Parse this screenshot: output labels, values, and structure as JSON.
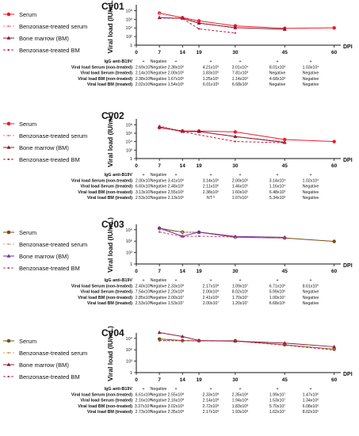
{
  "x_axis_unit": "DPI",
  "y_axis_label": "Viral load (IU/mL)",
  "legend_labels": [
    "Serum",
    "Benzonase-treated serum",
    "Bone marrow (BM)",
    "Benzonase-treated BM"
  ],
  "table_row_labels": [
    "IgG anti-B19V",
    "Viral load Serum (non-treated)",
    "Viral load Serum (treated)",
    "Viral load BM (non-treated)",
    "Viral load BM (treated)"
  ],
  "chart_data": [
    {
      "type": "line",
      "title": "Cy01",
      "y_scale": "log",
      "ylim": [
        1,
        1000000000
      ],
      "y_tick_labels": [
        "1",
        "10²",
        "10⁴",
        "10⁶",
        "10⁸"
      ],
      "x": [
        0,
        7,
        14,
        19,
        30,
        45,
        60
      ],
      "x_tick_labels": [
        "0",
        "7",
        "14",
        "19",
        "30",
        "45",
        "60"
      ],
      "series": [
        {
          "name": "Serum",
          "color": "#ee1a2a",
          "values": [
            null,
            26900000,
            2380000,
            421000,
            30100,
            8010,
            10300
          ]
        },
        {
          "name": "Benzonase-treated serum",
          "color": "#f07a8a",
          "values": [
            null,
            21400000,
            2000000,
            183000,
            7810,
            null,
            null
          ]
        },
        {
          "name": "Bone marrow (BM)",
          "color": "#8a1830",
          "values": [
            null,
            2380000,
            1670000,
            125000,
            11400,
            4680,
            null
          ]
        },
        {
          "name": "Benzonase-treated BM",
          "color": "#c01c40",
          "values": [
            null,
            2020000,
            1540000,
            6010,
            668,
            null,
            null
          ]
        }
      ],
      "table": {
        "columns": [
          "0",
          "7",
          "14",
          "19",
          "30",
          "45",
          "60"
        ],
        "rows": [
          [
            "Negative",
            "+",
            "+",
            "+",
            "+",
            "+",
            "+"
          ],
          [
            "Negative",
            "2.69x10⁷",
            "2.38x10⁶",
            "4.21x10⁵",
            "3.01x10⁴",
            "8.01x10³",
            "1.03x10⁴"
          ],
          [
            "Negative",
            "2.14x10⁷",
            "2.00x10⁶",
            "1.83x10⁵",
            "7.81x10³",
            "Negative",
            "Negative"
          ],
          [
            "Negative",
            "2.38x10⁶",
            "1.67x10⁶",
            "1.25x10⁵",
            "1.14x10⁴",
            "4.68x10³",
            "Negative"
          ],
          [
            "Negative",
            "2.02x10⁶",
            "1.54x10⁶",
            "6.01x10³",
            "6.68x10²",
            "Negative",
            "Negative"
          ]
        ]
      }
    },
    {
      "type": "line",
      "title": "Cy02",
      "y_scale": "log",
      "ylim": [
        1,
        1000000000
      ],
      "y_tick_labels": [
        "1",
        "10²",
        "10⁴",
        "10⁶",
        "10⁸"
      ],
      "x": [
        0,
        7,
        14,
        19,
        30,
        45,
        60
      ],
      "x_tick_labels": [
        "0",
        "7",
        "14",
        "19",
        "30",
        "45",
        "60"
      ],
      "series": [
        {
          "name": "Serum",
          "color": "#ee1a2a",
          "values": [
            null,
            20000000,
            3410000,
            3140000,
            2000000,
            31400,
            10200
          ]
        },
        {
          "name": "Benzonase-treated serum",
          "color": "#f07a8a",
          "values": [
            null,
            66000000,
            2480000,
            2110000,
            146000,
            11600,
            null
          ]
        },
        {
          "name": "Bone marrow (BM)",
          "color": "#8a1830",
          "values": [
            null,
            31300000,
            2550000,
            2380000,
            160000,
            6480,
            null
          ]
        },
        {
          "name": "Benzonase-treated BM",
          "color": "#c01c40",
          "values": [
            null,
            25300000,
            2130000,
            null,
            10700,
            5340,
            null
          ]
        }
      ],
      "table": {
        "columns": [
          "0",
          "7",
          "14",
          "19",
          "30",
          "45",
          "60"
        ],
        "rows": [
          [
            "Negative",
            "+",
            "+",
            "+",
            "+",
            "+",
            "+"
          ],
          [
            "Negative",
            "2.00x10⁷",
            "3.41x10⁶",
            "3.14x10⁶",
            "2.00x10⁶",
            "3.14x10⁴",
            "1.02x10⁴"
          ],
          [
            "Negative",
            "6.60x10⁷",
            "2.48x10⁶",
            "2.11x10⁶",
            "1.46x10⁵",
            "1.16x10⁴",
            "Negative"
          ],
          [
            "Negative",
            "3.13x10⁷",
            "2.55x10⁶",
            "2.38x10⁶",
            "1.60x10⁵",
            "6.48x10³",
            "Negative"
          ],
          [
            "Negative",
            "2.53x10⁷",
            "2.13x10⁶",
            "NT ᵇ",
            "1.07x10⁴",
            "5.34x10³",
            "Negative"
          ]
        ]
      }
    },
    {
      "type": "line",
      "title": "Cy03",
      "y_scale": "log",
      "ylim": [
        1,
        10000000000
      ],
      "y_tick_labels": [
        "1",
        "10³",
        "10⁶",
        "10⁹"
      ],
      "x": [
        0,
        7,
        14,
        19,
        30,
        45,
        60
      ],
      "x_tick_labels": [
        "0",
        "7",
        "14",
        "19",
        "30",
        "45",
        "60"
      ],
      "series": [
        {
          "name": "Serum",
          "color": "#7a4a10",
          "values": [
            null,
            2400000000,
            233000000,
            217000000,
            10900000,
            6710000,
            861000
          ]
        },
        {
          "name": "Benzonase-treated serum",
          "color": "#d8a0b0",
          "values": [
            null,
            754000000,
            220000000,
            200000000,
            8020000,
            5990000,
            null
          ]
        },
        {
          "name": "Bone marrow (BM)",
          "color": "#7030a0",
          "values": [
            null,
            2850000000,
            20000000,
            241000000,
            17000000,
            10000000,
            null
          ]
        },
        {
          "name": "Benzonase-treated BM",
          "color": "#c0407a",
          "values": [
            null,
            253000000,
            15300000,
            20000000,
            12000000,
            6680000,
            null
          ]
        }
      ],
      "table": {
        "columns": [
          "0",
          "7",
          "14",
          "19",
          "30",
          "45",
          "60"
        ],
        "rows": [
          [
            "Negative",
            "+",
            "+",
            "+",
            "+",
            "+",
            "+"
          ],
          [
            "Negative",
            "2.40x10⁹",
            "2.33x10⁸",
            "2.17x10⁸",
            "1.09x10⁷",
            "6.71x10⁶",
            "8.61x10⁵"
          ],
          [
            "Negative",
            "7.54x10⁸",
            "2.20x10⁸",
            "2.00x10⁸",
            "8.02x10⁶",
            "5.99x10⁶",
            "Negative"
          ],
          [
            "Negative",
            "2.85x10⁹",
            "2.00x10⁷",
            "2.41x10⁸",
            "1.70x10⁷",
            "1.00x10⁷",
            "Negative"
          ],
          [
            "Negative",
            "2.53x10⁸",
            "1.53x10⁷",
            "2.00x10⁷",
            "1.20x10⁷",
            "6.68x10⁶",
            "Negative"
          ]
        ]
      }
    },
    {
      "type": "line",
      "title": "Cy04",
      "y_scale": "log",
      "ylim": [
        1,
        10000000000
      ],
      "y_tick_labels": [
        "1",
        "10³",
        "10⁶",
        "10⁹"
      ],
      "x": [
        0,
        7,
        14,
        19,
        30,
        45,
        60
      ],
      "x_tick_labels": [
        "0",
        "7",
        "14",
        "19",
        "30",
        "45",
        "60"
      ],
      "series": [
        {
          "name": "Serum",
          "color": "#6a5a10",
          "values": [
            null,
            661000000,
            255000000,
            233000000,
            235000000,
            19900000,
            1470000
          ]
        },
        {
          "name": "Benzonase-treated serum",
          "color": "#d0a060",
          "values": [
            null,
            216000000,
            216000000,
            214000000,
            194000000,
            15300000,
            1340000
          ]
        },
        {
          "name": "Bone marrow (BM)",
          "color": "#8a1f40",
          "values": [
            null,
            33700000000,
            3020000000,
            272000000,
            183000000,
            57000000,
            6080000
          ]
        },
        {
          "name": "Benzonase-treated BM",
          "color": "#c02a60",
          "values": [
            null,
            273000000,
            235000000,
            217000000,
            193000000,
            16200000,
            802000
          ]
        }
      ],
      "table": {
        "columns": [
          "0",
          "7",
          "14",
          "19",
          "30",
          "45",
          "60"
        ],
        "rows": [
          [
            "Negative",
            "+",
            "+",
            "+",
            "+",
            "+",
            "+"
          ],
          [
            "Negative",
            "6.61x10⁸",
            "2.55x10⁸",
            "2.33x10⁸",
            "2.35x10⁸",
            "1.99x10⁷",
            "1.47x10⁶"
          ],
          [
            "Negative",
            "2.16x10⁸",
            "2.16x10⁸",
            "2.14x10⁸",
            "1.94x10⁸",
            "1.53x10⁷",
            "1.34x10⁶"
          ],
          [
            "Negative",
            "3.37x10¹⁰",
            "3.02x10⁹",
            "2.72x10⁸",
            "1.83x10⁸",
            "5.70x10⁷",
            "6.08x10⁶"
          ],
          [
            "Negative",
            "2.73x10⁸",
            "2.35x10⁸",
            "2.17x10⁸",
            "1.93x10⁸",
            "1.62x10⁷",
            "8.02x10⁵"
          ]
        ]
      }
    }
  ]
}
